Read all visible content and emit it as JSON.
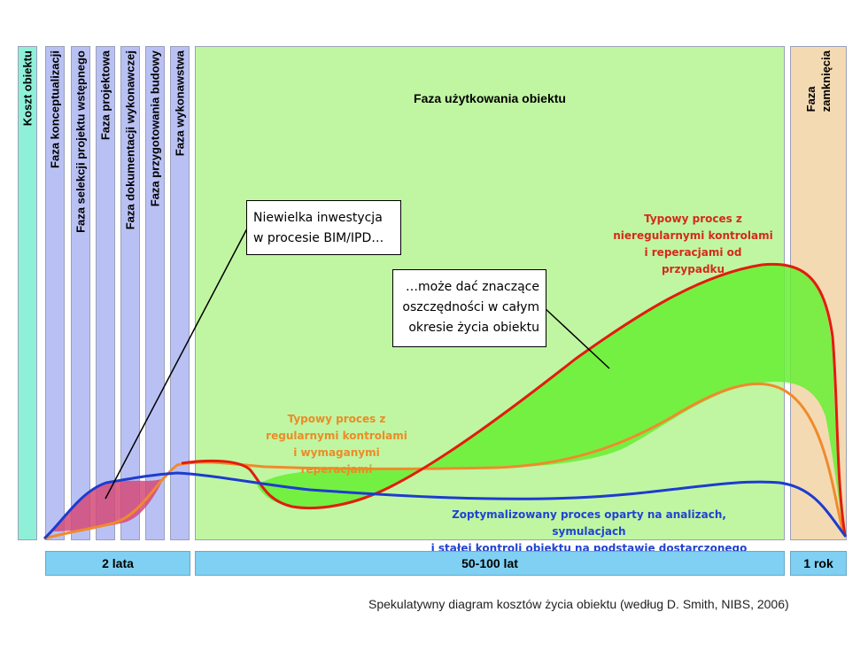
{
  "phases": {
    "cost_label": "Koszt obiektu",
    "design_phases": [
      "Faza konceptualizacji",
      "Faza  selekcji projektu wstępnego",
      "Faza projektowa",
      "Faza dokumentacji wykonawczej",
      "Faza przygotowania budowy",
      "Faza wykonawstwa"
    ],
    "use_phase": "Faza użytkowania obiektu",
    "closing_phase_line1": "Faza",
    "closing_phase_line2": "zamknięcia"
  },
  "timeline": {
    "design_duration": "2 lata",
    "use_duration": "50-100 lat",
    "closing_duration": "1 rok"
  },
  "callouts": {
    "left_line1": "Niewielka inwestycja",
    "left_line2": "w procesie BIM/IPD…",
    "right_line1": "…może dać znaczące",
    "right_line2": "oszczędności w całym",
    "right_line3": "okresie życia obiektu"
  },
  "curve_labels": {
    "red_line1": "Typowy proces z",
    "red_line2": "nieregularnymi kontrolami",
    "red_line3": "i reperacjami od przypadku",
    "orange_line1": "Typowy proces z",
    "orange_line2": "regularnymi kontrolami",
    "orange_line3": "i wymaganymi reperacjami",
    "blue_line1": "Zoptymalizowany proces oparty na analizach, symulacjach",
    "blue_line2": "i stałej kontroli obiektu na podstawie dostarczonego modelu"
  },
  "caption": "Spekulatywny diagram kosztów życia obiektu (według D. Smith, NIBS, 2006)",
  "colors": {
    "cost_column": "#8ff0d8",
    "design_column": "#b9c1f4",
    "use_area": "#c0f6a2",
    "closing_area": "#f4dab2",
    "timeline": "#7fd0f3",
    "red_curve": "#e21c0e",
    "orange_curve": "#f08a2c",
    "blue_curve": "#1d3ccf",
    "savings_fill": "#66ee33",
    "investment_fill": "#d44a78"
  }
}
